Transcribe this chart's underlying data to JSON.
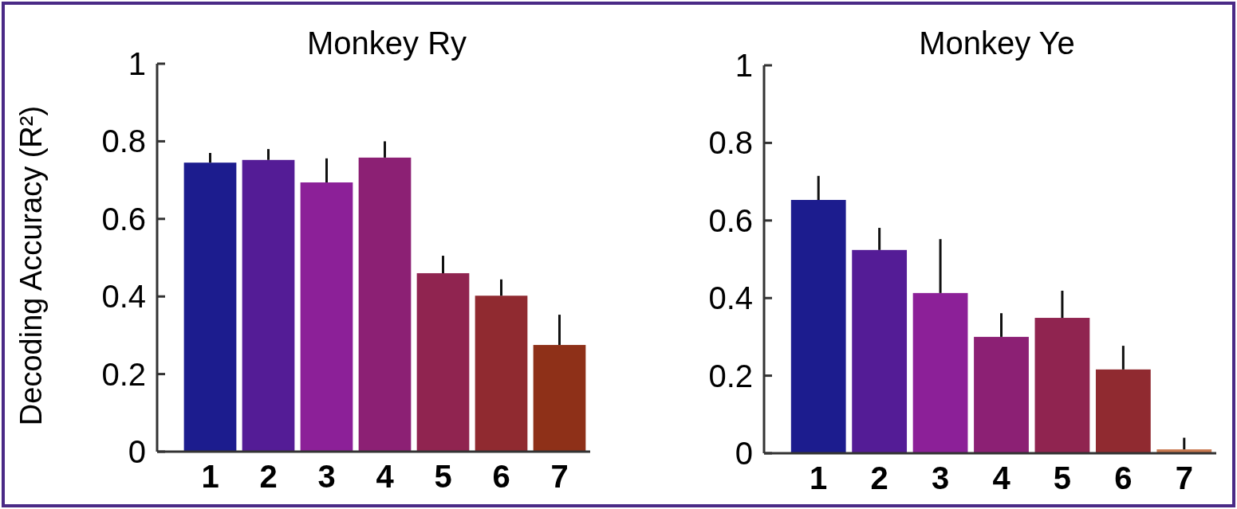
{
  "chart_data": [
    {
      "type": "bar",
      "title": "Monkey Ry",
      "ylabel": "Decoding Accuracy (R²)",
      "categories": [
        "1",
        "2",
        "3",
        "4",
        "5",
        "6",
        "7"
      ],
      "values": [
        0.745,
        0.752,
        0.694,
        0.758,
        0.46,
        0.402,
        0.275
      ],
      "errors": [
        [
          0.745,
          0.77
        ],
        [
          0.752,
          0.78
        ],
        [
          0.694,
          0.756
        ],
        [
          0.758,
          0.8
        ],
        [
          0.46,
          0.505
        ],
        [
          0.402,
          0.444
        ],
        [
          0.275,
          0.353
        ]
      ],
      "colors": [
        "#1c1c8e",
        "#541c96",
        "#8c2098",
        "#8c2074",
        "#902450",
        "#902a30",
        "#8e3018"
      ],
      "ylim": [
        0,
        1
      ],
      "yticks": [
        0,
        0.2,
        0.4,
        0.6,
        0.8,
        1
      ],
      "grid": false
    },
    {
      "type": "bar",
      "title": "Monkey Ye",
      "categories": [
        "1",
        "2",
        "3",
        "4",
        "5",
        "6",
        "7"
      ],
      "values": [
        0.653,
        0.524,
        0.413,
        0.3,
        0.349,
        0.216,
        0.01
      ],
      "errors": [
        [
          0.653,
          0.715
        ],
        [
          0.524,
          0.581
        ],
        [
          0.413,
          0.552
        ],
        [
          0.3,
          0.361
        ],
        [
          0.349,
          0.419
        ],
        [
          0.216,
          0.277
        ],
        [
          0.01,
          0.04
        ]
      ],
      "colors": [
        "#1c1c8e",
        "#541c96",
        "#8c2098",
        "#8c2074",
        "#902450",
        "#902a30",
        "#c8784e"
      ],
      "ylim": [
        0,
        1
      ],
      "yticks": [
        0,
        0.2,
        0.4,
        0.6,
        0.8,
        1
      ],
      "grid": false
    }
  ]
}
